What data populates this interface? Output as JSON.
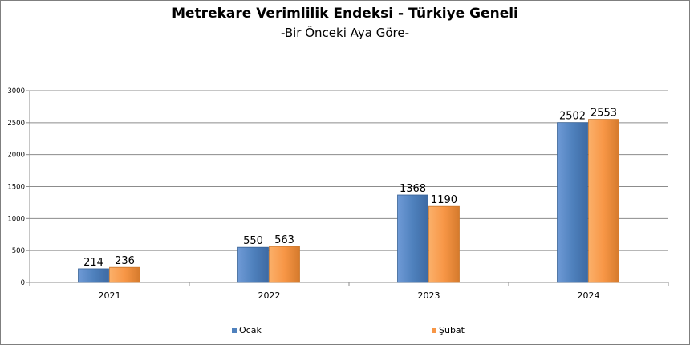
{
  "chart_data": {
    "type": "bar",
    "title": "Metrekare Verimlilik Endeksi - Türkiye Geneli",
    "subtitle": "-Bir Önceki Aya Göre-",
    "categories": [
      "2021",
      "2022",
      "2023",
      "2024"
    ],
    "series": [
      {
        "name": "Ocak",
        "values": [
          214,
          550,
          1368,
          2502
        ],
        "color": "#4f81bd"
      },
      {
        "name": "Şubat",
        "values": [
          236,
          563,
          1190,
          2553
        ],
        "color": "#f79646"
      }
    ],
    "ylim": [
      0,
      3000
    ],
    "yticks": [
      0,
      500,
      1000,
      1500,
      2000,
      2500,
      3000
    ],
    "grid": true,
    "legend_position": "bottom",
    "data_labels": true
  }
}
